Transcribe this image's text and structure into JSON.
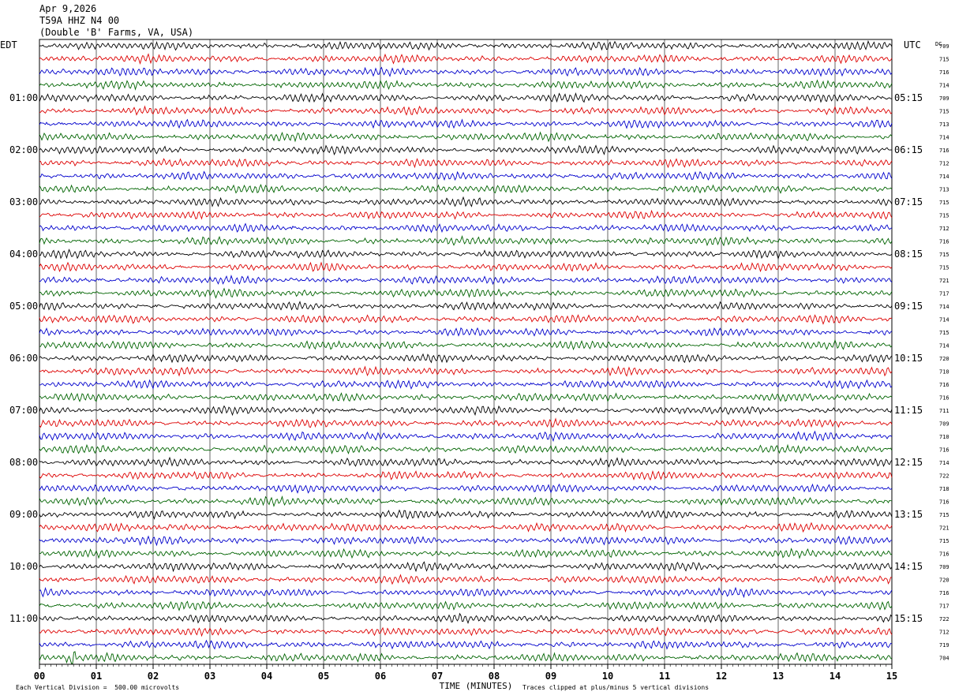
{
  "header": {
    "date": "Apr 9,2026",
    "station": "T59A HHZ N4 00",
    "location": "(Double 'B' Farms, VA, USA)"
  },
  "left_tz": "EDT",
  "right_tz": "UTC",
  "dc_label": "DC",
  "footer": {
    "scale_note": "Each Vertical Division =  500.00 microvolts",
    "clip_note": "Traces clipped at plus/minus 5 vertical divisions"
  },
  "chart_data": {
    "type": "line",
    "title": "T59A HHZ N4 00",
    "xlabel": "TIME (MINUTES)",
    "ylabel": "",
    "x_ticks": [
      "00",
      "01",
      "02",
      "03",
      "04",
      "05",
      "06",
      "07",
      "08",
      "09",
      "10",
      "11",
      "12",
      "13",
      "14",
      "15"
    ],
    "xlim": [
      0,
      15
    ],
    "rows_per_hour": 4,
    "trace_count": 48,
    "trace_colors": [
      "#000000",
      "#dd0000",
      "#0000cc",
      "#006400"
    ],
    "left_hour_labels": [
      "01:00",
      "02:00",
      "03:00",
      "04:00",
      "05:00",
      "06:00",
      "07:00",
      "08:00",
      "09:00",
      "10:00",
      "11:00"
    ],
    "right_hour_labels": [
      "05:15",
      "06:15",
      "07:15",
      "08:15",
      "09:15",
      "10:15",
      "11:15",
      "12:15",
      "13:15",
      "14:15",
      "15:15"
    ],
    "dc_offsets": [
      "709",
      "715",
      "716",
      "714",
      "709",
      "715",
      "713",
      "714",
      "716",
      "712",
      "714",
      "713",
      "715",
      "715",
      "712",
      "716",
      "715",
      "715",
      "721",
      "717",
      "714",
      "714",
      "715",
      "714",
      "720",
      "710",
      "716",
      "716",
      "711",
      "709",
      "710",
      "716",
      "714",
      "722",
      "718",
      "716",
      "715",
      "721",
      "715",
      "716",
      "709",
      "720",
      "716",
      "717",
      "722",
      "712",
      "719",
      "704"
    ]
  }
}
